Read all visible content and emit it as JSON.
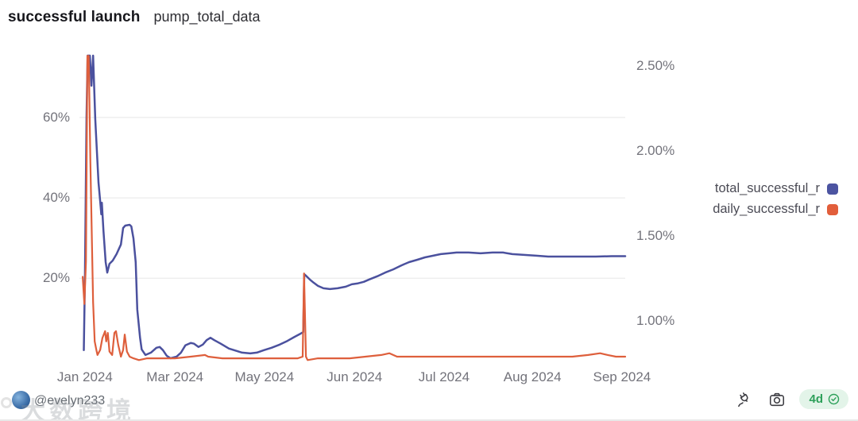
{
  "header": {
    "title": "successful launch",
    "subtitle": "pump_total_data"
  },
  "legend": [
    {
      "label": "total_successful_r",
      "color": "#4C54A1"
    },
    {
      "label": "daily_successful_r",
      "color": "#E25E3B"
    }
  ],
  "footer": {
    "handle": "@evelyn233",
    "watermark": "大数跨境",
    "refresh_badge": "4d",
    "icons": [
      "plug-icon",
      "camera-icon",
      "verified-check-icon"
    ]
  },
  "colors": {
    "grid": "#ececec",
    "axis_text": "#73737b",
    "badge_green": "#2da05a",
    "badge_bg": "#e3f4e9"
  },
  "chart_data": {
    "type": "line",
    "title": "successful launch pump_total_data",
    "grid": "horizontal-left-ticks-only",
    "legend_position": "right",
    "x_ticks": [
      {
        "label": "Jan 2024",
        "f": 0.01
      },
      {
        "label": "Mar 2024",
        "f": 0.175
      },
      {
        "label": "May 2024",
        "f": 0.339
      },
      {
        "label": "Jun 2024",
        "f": 0.504
      },
      {
        "label": "Jul 2024",
        "f": 0.668
      },
      {
        "label": "Aug 2024",
        "f": 0.83
      },
      {
        "label": "Sep 2024",
        "f": 0.994
      }
    ],
    "left_axis": {
      "range": [
        -0.7,
        75.4
      ],
      "ticks": [
        {
          "label": "20%",
          "value": 20
        },
        {
          "label": "40%",
          "value": 40
        },
        {
          "label": "60%",
          "value": 60
        }
      ]
    },
    "right_axis": {
      "range": [
        0.762,
        2.562
      ],
      "ticks": [
        {
          "label": "1.00%",
          "value": 1.0
        },
        {
          "label": "1.50%",
          "value": 1.5
        },
        {
          "label": "2.00%",
          "value": 2.0
        },
        {
          "label": "2.50%",
          "value": 2.5
        }
      ]
    },
    "series": [
      {
        "name": "total_successful_r",
        "axis": "left",
        "color": "#4B519E",
        "width": 2.5,
        "points": [
          [
            0.008,
            2.1
          ],
          [
            0.01,
            20
          ],
          [
            0.013,
            60
          ],
          [
            0.015,
            75.4
          ],
          [
            0.019,
            75.4
          ],
          [
            0.022,
            67.9
          ],
          [
            0.025,
            75.4
          ],
          [
            0.029,
            59.6
          ],
          [
            0.035,
            43.8
          ],
          [
            0.038,
            39.2
          ],
          [
            0.04,
            35.9
          ],
          [
            0.041,
            38.8
          ],
          [
            0.044,
            31.9
          ],
          [
            0.048,
            24.0
          ],
          [
            0.051,
            21.4
          ],
          [
            0.055,
            23.6
          ],
          [
            0.061,
            24.4
          ],
          [
            0.068,
            26.0
          ],
          [
            0.076,
            28.4
          ],
          [
            0.08,
            32.5
          ],
          [
            0.084,
            33.1
          ],
          [
            0.092,
            33.3
          ],
          [
            0.095,
            32.9
          ],
          [
            0.099,
            29.9
          ],
          [
            0.103,
            24.0
          ],
          [
            0.106,
            12.2
          ],
          [
            0.111,
            5.2
          ],
          [
            0.114,
            2.3
          ],
          [
            0.121,
            0.9
          ],
          [
            0.131,
            1.5
          ],
          [
            0.141,
            2.7
          ],
          [
            0.147,
            2.9
          ],
          [
            0.153,
            2.1
          ],
          [
            0.16,
            0.7
          ],
          [
            0.167,
            0.1
          ],
          [
            0.178,
            0.5
          ],
          [
            0.186,
            1.5
          ],
          [
            0.194,
            3.3
          ],
          [
            0.204,
            3.9
          ],
          [
            0.21,
            3.7
          ],
          [
            0.218,
            2.9
          ],
          [
            0.226,
            3.5
          ],
          [
            0.233,
            4.6
          ],
          [
            0.24,
            5.2
          ],
          [
            0.247,
            4.6
          ],
          [
            0.259,
            3.7
          ],
          [
            0.274,
            2.5
          ],
          [
            0.288,
            1.9
          ],
          [
            0.298,
            1.5
          ],
          [
            0.313,
            1.3
          ],
          [
            0.325,
            1.5
          ],
          [
            0.338,
            2.1
          ],
          [
            0.352,
            2.7
          ],
          [
            0.367,
            3.5
          ],
          [
            0.381,
            4.4
          ],
          [
            0.394,
            5.4
          ],
          [
            0.405,
            6.2
          ],
          [
            0.41,
            6.6
          ],
          [
            0.412,
            21.0
          ],
          [
            0.416,
            20.5
          ],
          [
            0.422,
            19.7
          ],
          [
            0.429,
            18.9
          ],
          [
            0.437,
            18.1
          ],
          [
            0.447,
            17.5
          ],
          [
            0.459,
            17.3
          ],
          [
            0.473,
            17.5
          ],
          [
            0.488,
            17.9
          ],
          [
            0.499,
            18.5
          ],
          [
            0.509,
            18.7
          ],
          [
            0.521,
            19.1
          ],
          [
            0.531,
            19.7
          ],
          [
            0.546,
            20.5
          ],
          [
            0.56,
            21.4
          ],
          [
            0.575,
            22.2
          ],
          [
            0.59,
            23.2
          ],
          [
            0.604,
            24.0
          ],
          [
            0.619,
            24.6
          ],
          [
            0.633,
            25.2
          ],
          [
            0.648,
            25.6
          ],
          [
            0.662,
            26.0
          ],
          [
            0.677,
            26.2
          ],
          [
            0.691,
            26.4
          ],
          [
            0.713,
            26.4
          ],
          [
            0.735,
            26.2
          ],
          [
            0.757,
            26.4
          ],
          [
            0.776,
            26.4
          ],
          [
            0.793,
            26.0
          ],
          [
            0.815,
            25.8
          ],
          [
            0.837,
            25.6
          ],
          [
            0.859,
            25.4
          ],
          [
            0.888,
            25.4
          ],
          [
            0.917,
            25.4
          ],
          [
            0.946,
            25.4
          ],
          [
            0.975,
            25.5
          ],
          [
            1.0,
            25.5
          ]
        ]
      },
      {
        "name": "daily_successful_r",
        "axis": "right",
        "color": "#DE5F3C",
        "width": 2.2,
        "points": [
          [
            0.006,
            1.26
          ],
          [
            0.009,
            1.1
          ],
          [
            0.012,
            1.35
          ],
          [
            0.0145,
            2.56
          ],
          [
            0.017,
            2.56
          ],
          [
            0.02,
            1.95
          ],
          [
            0.025,
            1.11
          ],
          [
            0.028,
            0.88
          ],
          [
            0.031,
            0.83
          ],
          [
            0.033,
            0.8
          ],
          [
            0.038,
            0.83
          ],
          [
            0.042,
            0.9
          ],
          [
            0.047,
            0.94
          ],
          [
            0.049,
            0.88
          ],
          [
            0.052,
            0.93
          ],
          [
            0.055,
            0.82
          ],
          [
            0.06,
            0.8
          ],
          [
            0.064,
            0.93
          ],
          [
            0.067,
            0.94
          ],
          [
            0.071,
            0.86
          ],
          [
            0.076,
            0.79
          ],
          [
            0.08,
            0.83
          ],
          [
            0.083,
            0.92
          ],
          [
            0.087,
            0.82
          ],
          [
            0.092,
            0.79
          ],
          [
            0.099,
            0.78
          ],
          [
            0.109,
            0.77
          ],
          [
            0.124,
            0.78
          ],
          [
            0.146,
            0.78
          ],
          [
            0.175,
            0.78
          ],
          [
            0.204,
            0.79
          ],
          [
            0.23,
            0.8
          ],
          [
            0.236,
            0.79
          ],
          [
            0.262,
            0.78
          ],
          [
            0.291,
            0.78
          ],
          [
            0.32,
            0.78
          ],
          [
            0.349,
            0.78
          ],
          [
            0.378,
            0.78
          ],
          [
            0.4,
            0.78
          ],
          [
            0.409,
            0.79
          ],
          [
            0.4115,
            1.28
          ],
          [
            0.415,
            0.79
          ],
          [
            0.418,
            0.77
          ],
          [
            0.437,
            0.78
          ],
          [
            0.466,
            0.78
          ],
          [
            0.495,
            0.78
          ],
          [
            0.524,
            0.79
          ],
          [
            0.553,
            0.8
          ],
          [
            0.568,
            0.81
          ],
          [
            0.582,
            0.79
          ],
          [
            0.611,
            0.79
          ],
          [
            0.64,
            0.79
          ],
          [
            0.67,
            0.79
          ],
          [
            0.699,
            0.79
          ],
          [
            0.728,
            0.79
          ],
          [
            0.757,
            0.79
          ],
          [
            0.786,
            0.79
          ],
          [
            0.815,
            0.79
          ],
          [
            0.844,
            0.79
          ],
          [
            0.873,
            0.79
          ],
          [
            0.903,
            0.79
          ],
          [
            0.932,
            0.8
          ],
          [
            0.954,
            0.81
          ],
          [
            0.968,
            0.8
          ],
          [
            0.983,
            0.79
          ],
          [
            1.0,
            0.79
          ]
        ]
      }
    ]
  }
}
